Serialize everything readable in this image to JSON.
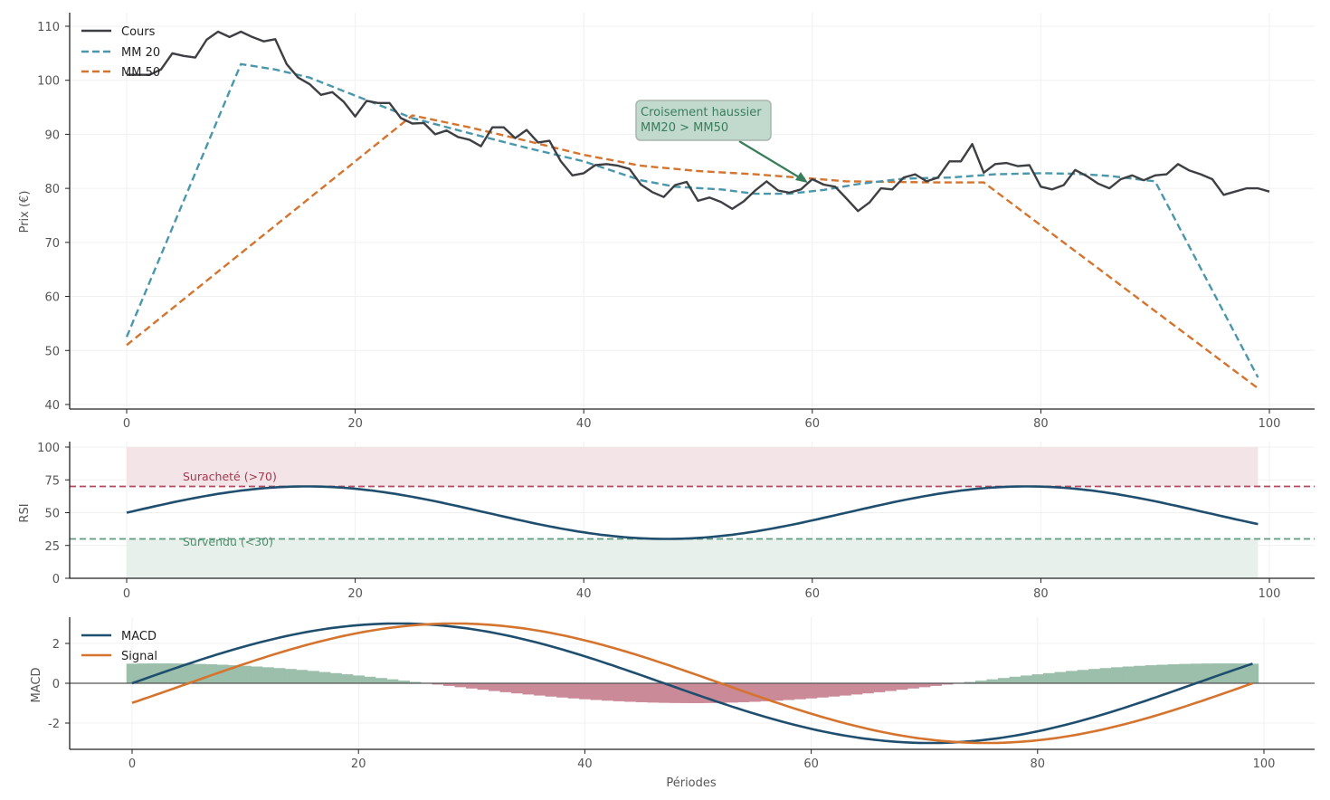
{
  "colors": {
    "price": "#3d3f43",
    "mm20": "#4a97ac",
    "mm50": "#d4742e",
    "rsi": "#1f4e6e",
    "overbought": "#b5495f",
    "oversold": "#5f9c7e",
    "overbought_fill": "#f2e4e7",
    "oversold_fill": "#e7f0eb",
    "macd": "#1f4e6e",
    "signal": "#d4742e",
    "hist_pos": "#9bbfab",
    "hist_neg": "#cb8a98",
    "annotation_fill": "#c1dacd",
    "annotation_border": "#a9b5ae",
    "annotation_arrow": "#3a7d5c",
    "grid": "#f0f0f0",
    "axis": "#222222"
  },
  "chart_data": [
    {
      "type": "line",
      "title": "",
      "xlabel": "",
      "ylabel": "Prix (€)",
      "xlim": [
        -5,
        104
      ],
      "ylim": [
        40,
        112
      ],
      "x_ticks": [
        "0",
        "20",
        "40",
        "60",
        "80",
        "100"
      ],
      "y_ticks": [
        "40",
        "50",
        "60",
        "70",
        "80",
        "90",
        "100",
        "110"
      ],
      "grid": true,
      "legend_position": "upper left",
      "series": [
        {
          "name": "Cours",
          "style": "solid",
          "x_start": 0,
          "values": [
            101,
            101,
            101,
            102,
            105,
            104.5,
            104.2,
            107.5,
            109,
            108,
            109,
            108,
            107.2,
            107.6,
            103,
            100.5,
            99.3,
            97.3,
            97.8,
            96,
            93.3,
            96.2,
            95.8,
            95.8,
            93,
            92,
            92.1,
            90,
            90.7,
            89.5,
            89,
            87.8,
            91.3,
            91.3,
            89.3,
            90.8,
            88.5,
            88.8,
            85,
            82.4,
            82.8,
            84.3,
            84.5,
            84.2,
            83.6,
            80.7,
            79.3,
            78.4,
            80.6,
            81.2,
            77.7,
            78.3,
            77.5,
            76.2,
            77.6,
            79.6,
            81.3,
            79.6,
            79.2,
            79.8,
            81.7,
            80.7,
            80.3,
            78.1,
            75.8,
            77.4,
            80,
            79.8,
            82,
            82.6,
            81.3,
            82,
            85,
            85,
            88.2,
            82.9,
            84.5,
            84.7,
            84.1,
            84.3,
            80.3,
            79.8,
            80.6,
            83.4,
            82.3,
            80.9,
            80,
            81.7,
            82.4,
            81.5,
            82.4,
            82.6,
            84.5,
            83.3,
            82.6,
            81.7,
            78.8,
            79.4,
            80,
            80,
            79.4
          ]
        },
        {
          "name": "MM 20",
          "style": "dashed",
          "points": [
            [
              0,
              52.5
            ],
            [
              10,
              103
            ],
            [
              13,
              102
            ],
            [
              16,
              100.5
            ],
            [
              19,
              98
            ],
            [
              22,
              95.5
            ],
            [
              25,
              93
            ],
            [
              30,
              90.2
            ],
            [
              35,
              87.5
            ],
            [
              40,
              85
            ],
            [
              45,
              81.5
            ],
            [
              48,
              80.3
            ],
            [
              52,
              79.8
            ],
            [
              55,
              79
            ],
            [
              58,
              79
            ],
            [
              61,
              79.7
            ],
            [
              64,
              80.8
            ],
            [
              68,
              81.8
            ],
            [
              72,
              82
            ],
            [
              76,
              82.6
            ],
            [
              80,
              82.8
            ],
            [
              83,
              82.7
            ],
            [
              86,
              82.3
            ],
            [
              90,
              81.3
            ],
            [
              99,
              45
            ]
          ]
        },
        {
          "name": "MM 50",
          "style": "dashed",
          "points": [
            [
              0,
              51
            ],
            [
              25,
              93.5
            ],
            [
              30,
              91.3
            ],
            [
              35,
              88.8
            ],
            [
              40,
              86.2
            ],
            [
              45,
              84.2
            ],
            [
              50,
              83.2
            ],
            [
              55,
              82.6
            ],
            [
              60,
              81.8
            ],
            [
              63,
              81.3
            ],
            [
              67,
              81.2
            ],
            [
              71,
              81.1
            ],
            [
              75,
              81.1
            ],
            [
              99,
              43
            ]
          ]
        }
      ],
      "annotations": [
        {
          "text": [
            "Croisement haussier",
            "MM20 > MM50"
          ],
          "xy": [
            60,
            81.7
          ],
          "xytext": [
            45.5,
            93
          ]
        }
      ]
    },
    {
      "type": "line",
      "ylabel": "RSI",
      "xlim": [
        -5,
        104
      ],
      "ylim": [
        0,
        100
      ],
      "x_ticks": [
        "0",
        "20",
        "40",
        "60",
        "80",
        "100"
      ],
      "y_ticks": [
        "0",
        "25",
        "50",
        "75",
        "100"
      ],
      "series": [
        {
          "name": "RSI",
          "formula": "50 + 20*sin(2*pi*x/63)",
          "x_range": [
            0,
            99
          ]
        }
      ],
      "hlines": [
        {
          "y": 70,
          "label": "Suracheté (>70)",
          "style": "dashed"
        },
        {
          "y": 30,
          "label": "Survendu (<30)",
          "style": "dashed"
        }
      ],
      "bands": [
        {
          "from": 70,
          "to": 100,
          "x_range": [
            0,
            99
          ],
          "color": "overbought_fill"
        },
        {
          "from": 0,
          "to": 30,
          "x_range": [
            0,
            99
          ],
          "color": "oversold_fill"
        }
      ]
    },
    {
      "type": "line",
      "xlabel": "Périodes",
      "ylabel": "MACD",
      "xlim": [
        -5,
        104
      ],
      "ylim": [
        -3.3,
        3.3
      ],
      "x_ticks": [
        "0",
        "20",
        "40",
        "60",
        "80",
        "100"
      ],
      "y_ticks": [
        "-2",
        "0",
        "2"
      ],
      "legend_position": "upper left",
      "series": [
        {
          "name": "MACD",
          "formula": "3*sin(2*pi*x/94)",
          "x_range": [
            0,
            99
          ]
        },
        {
          "name": "Signal",
          "formula": "3*sin(2*pi*(x-5)/94)",
          "x_range": [
            0,
            99
          ]
        }
      ],
      "histogram": {
        "name": "MACD - Signal",
        "positive_color": "hist_pos",
        "negative_color": "hist_neg",
        "max_abs": 1.0
      }
    }
  ],
  "labels": {
    "price_legend": [
      "Cours",
      "MM 20",
      "MM 50"
    ],
    "macd_legend": [
      "MACD",
      "Signal"
    ],
    "annotation_line1": "Croisement haussier",
    "annotation_line2": "MM20 > MM50",
    "overbought_label": "Suracheté (>70)",
    "oversold_label": "Survendu (<30)",
    "price_ylabel": "Prix (€)",
    "rsi_ylabel": "RSI",
    "macd_ylabel": "MACD",
    "xlabel": "Périodes"
  }
}
